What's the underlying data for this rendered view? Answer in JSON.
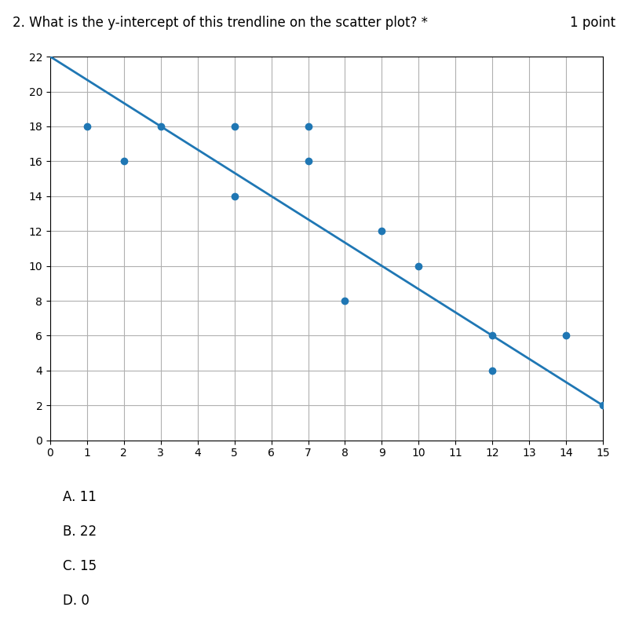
{
  "chart_data": {
    "type": "scatter",
    "title": "2. What is the y-intercept of this trendline on the scatter plot? *",
    "subtitle": "1 point",
    "series": [
      {
        "type": "scatter",
        "x": [
          1,
          2,
          3,
          5,
          5,
          7,
          7,
          8,
          9,
          10,
          12,
          12,
          14,
          15
        ],
        "values": [
          18,
          16,
          18,
          14,
          18,
          16,
          18,
          8,
          12,
          10,
          6,
          4,
          6,
          2
        ]
      },
      {
        "type": "line",
        "x": [
          0,
          15
        ],
        "values": [
          22,
          2
        ]
      }
    ],
    "xlim": [
      0,
      15
    ],
    "ylim": [
      0,
      22
    ],
    "xticks": [
      0,
      1,
      2,
      3,
      4,
      5,
      6,
      7,
      8,
      9,
      10,
      11,
      12,
      13,
      14,
      15
    ],
    "yticks": [
      0,
      2,
      4,
      6,
      8,
      10,
      12,
      14,
      16,
      18,
      20,
      22
    ],
    "grid": true,
    "annotations": [
      "A. 11",
      "B. 22",
      "C. 15",
      "D. 0"
    ]
  }
}
